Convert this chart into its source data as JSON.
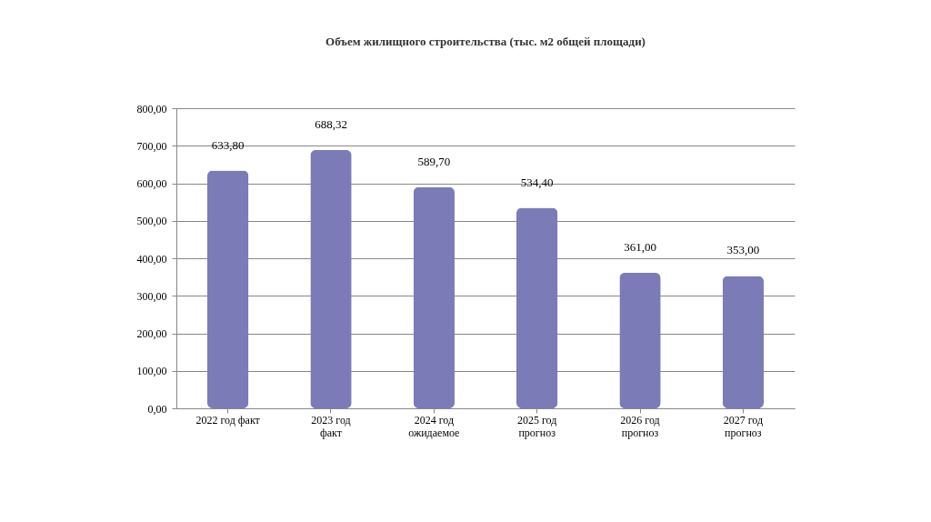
{
  "chart_data": {
    "type": "bar",
    "title": "Объем жилищного строительства (тыс. м2 общей площади)",
    "categories": [
      "2022 год факт",
      "2023 год\nфакт",
      "2024 год\nожидаемое",
      "2025  год\nпрогноз",
      "2026 год\nпрогноз",
      "2027 год\nпрогноз"
    ],
    "values": [
      633.8,
      688.32,
      589.7,
      534.4,
      361,
      353
    ],
    "value_labels": [
      "633,80",
      "688,32",
      "589,70",
      "534,40",
      "361,00",
      "353,00"
    ],
    "color": "#7b7bb8",
    "ylim": [
      0,
      800
    ],
    "yticks": [
      {
        "value": 0,
        "label": "0,00"
      },
      {
        "value": 100,
        "label": "100,00"
      },
      {
        "value": 200,
        "label": "200,00"
      },
      {
        "value": 300,
        "label": "300,00"
      },
      {
        "value": 400,
        "label": "400,00"
      },
      {
        "value": 500,
        "label": "500,00"
      },
      {
        "value": 600,
        "label": "600,00"
      },
      {
        "value": 700,
        "label": "700,00"
      },
      {
        "value": 800,
        "label": "800,00"
      }
    ],
    "grid": "y"
  }
}
